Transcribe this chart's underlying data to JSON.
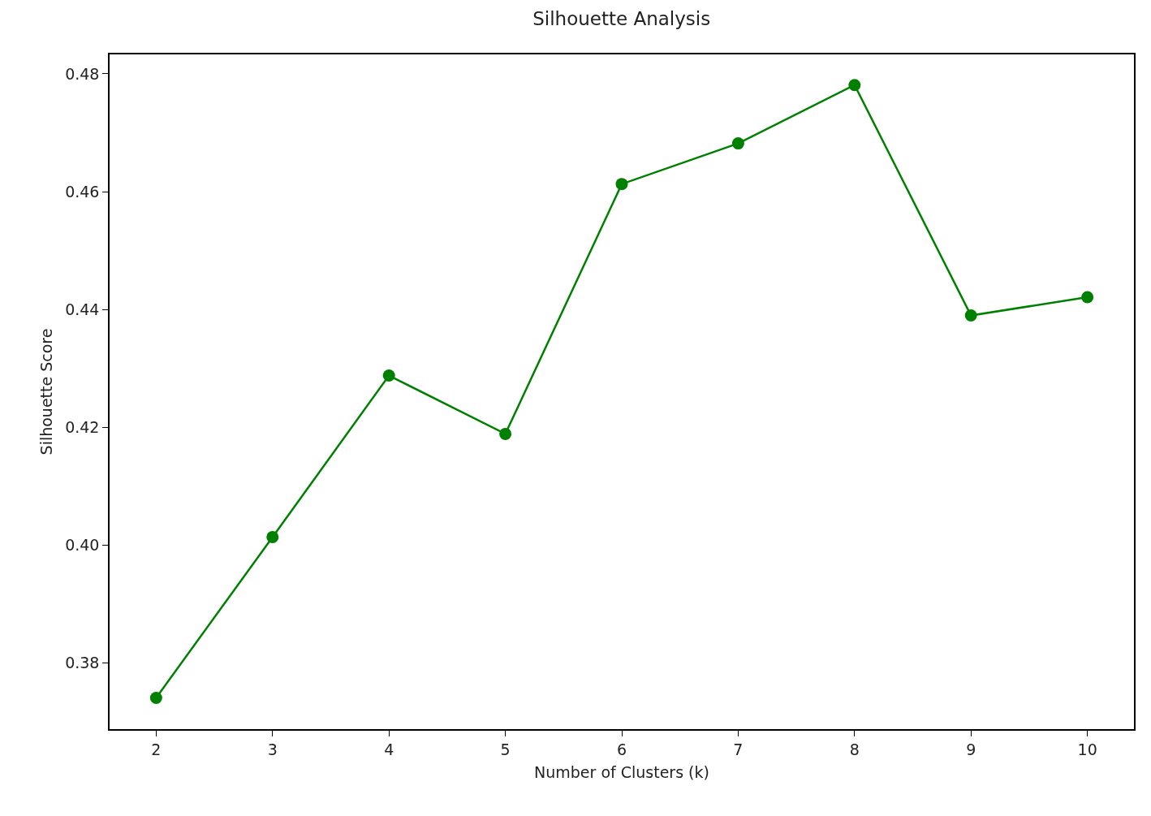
{
  "chart_data": {
    "type": "line",
    "title": "Silhouette Analysis",
    "xlabel": "Number of Clusters (k)",
    "ylabel": "Silhouette Score",
    "x": [
      2,
      3,
      4,
      5,
      6,
      7,
      8,
      9,
      10
    ],
    "series": [
      {
        "color": "#008000",
        "values": [
          0.3741,
          0.4014,
          0.4288,
          0.4189,
          0.4613,
          0.4682,
          0.4781,
          0.439,
          0.4421
        ]
      }
    ],
    "xlim": [
      1.6,
      10.4
    ],
    "xticks": [
      2,
      3,
      4,
      5,
      6,
      7,
      8,
      9,
      10
    ],
    "ylim": [
      0.3688,
      0.4833
    ],
    "yticks": [
      0.38,
      {
        "value": 0.4,
        "label": "0.40"
      },
      0.42,
      0.44,
      0.46,
      0.48
    ],
    "grid": false,
    "legend": false,
    "marker": "circle",
    "line_style": "solid"
  }
}
